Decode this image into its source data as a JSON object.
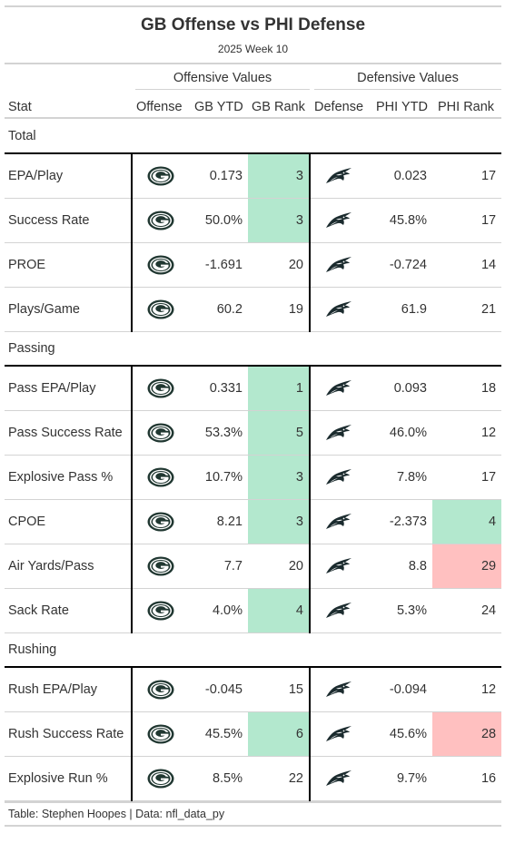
{
  "title": "GB Offense vs PHI Defense",
  "subtitle": "2025 Week 10",
  "spanners": {
    "offense": "Offensive Values",
    "defense": "Defensive Values"
  },
  "columns": {
    "stat": "Stat",
    "offense": "Offense",
    "gb_ytd": "GB YTD",
    "gb_rank": "GB Rank",
    "defense": "Defense",
    "phi_ytd": "PHI YTD",
    "phi_rank": "PHI Rank"
  },
  "icons": {
    "offense_logo": "green-bay-g-logo-icon",
    "defense_logo": "eagle-head-logo-icon"
  },
  "colors": {
    "good": "#b3e8ce",
    "bad": "#ffc0c0",
    "gb_green": "#203731",
    "gb_gold": "#ffb612",
    "phi_green": "#004c54"
  },
  "groups": [
    {
      "label": "Total",
      "rows": [
        {
          "stat": "EPA/Play",
          "gb_ytd": "0.173",
          "gb_rank": "3",
          "gb_hl": "good",
          "phi_ytd": "0.023",
          "phi_rank": "17",
          "phi_hl": ""
        },
        {
          "stat": "Success Rate",
          "gb_ytd": "50.0%",
          "gb_rank": "3",
          "gb_hl": "good",
          "phi_ytd": "45.8%",
          "phi_rank": "17",
          "phi_hl": ""
        },
        {
          "stat": "PROE",
          "gb_ytd": "-1.691",
          "gb_rank": "20",
          "gb_hl": "",
          "phi_ytd": "-0.724",
          "phi_rank": "14",
          "phi_hl": ""
        },
        {
          "stat": "Plays/Game",
          "gb_ytd": "60.2",
          "gb_rank": "19",
          "gb_hl": "",
          "phi_ytd": "61.9",
          "phi_rank": "21",
          "phi_hl": ""
        }
      ]
    },
    {
      "label": "Passing",
      "rows": [
        {
          "stat": "Pass EPA/Play",
          "gb_ytd": "0.331",
          "gb_rank": "1",
          "gb_hl": "good",
          "phi_ytd": "0.093",
          "phi_rank": "18",
          "phi_hl": ""
        },
        {
          "stat": "Pass Success Rate",
          "gb_ytd": "53.3%",
          "gb_rank": "5",
          "gb_hl": "good",
          "phi_ytd": "46.0%",
          "phi_rank": "12",
          "phi_hl": ""
        },
        {
          "stat": "Explosive Pass %",
          "gb_ytd": "10.7%",
          "gb_rank": "3",
          "gb_hl": "good",
          "phi_ytd": "7.8%",
          "phi_rank": "17",
          "phi_hl": ""
        },
        {
          "stat": "CPOE",
          "gb_ytd": "8.21",
          "gb_rank": "3",
          "gb_hl": "good",
          "phi_ytd": "-2.373",
          "phi_rank": "4",
          "phi_hl": "good"
        },
        {
          "stat": "Air Yards/Pass",
          "gb_ytd": "7.7",
          "gb_rank": "20",
          "gb_hl": "",
          "phi_ytd": "8.8",
          "phi_rank": "29",
          "phi_hl": "bad"
        },
        {
          "stat": "Sack Rate",
          "gb_ytd": "4.0%",
          "gb_rank": "4",
          "gb_hl": "good",
          "phi_ytd": "5.3%",
          "phi_rank": "24",
          "phi_hl": ""
        }
      ]
    },
    {
      "label": "Rushing",
      "rows": [
        {
          "stat": "Rush EPA/Play",
          "gb_ytd": "-0.045",
          "gb_rank": "15",
          "gb_hl": "",
          "phi_ytd": "-0.094",
          "phi_rank": "12",
          "phi_hl": ""
        },
        {
          "stat": "Rush Success Rate",
          "gb_ytd": "45.5%",
          "gb_rank": "6",
          "gb_hl": "good",
          "phi_ytd": "45.6%",
          "phi_rank": "28",
          "phi_hl": "bad"
        },
        {
          "stat": "Explosive Run %",
          "gb_ytd": "8.5%",
          "gb_rank": "22",
          "gb_hl": "",
          "phi_ytd": "9.7%",
          "phi_rank": "16",
          "phi_hl": ""
        }
      ]
    }
  ],
  "footer": "Table: Stephen Hoopes | Data: nfl_data_py"
}
